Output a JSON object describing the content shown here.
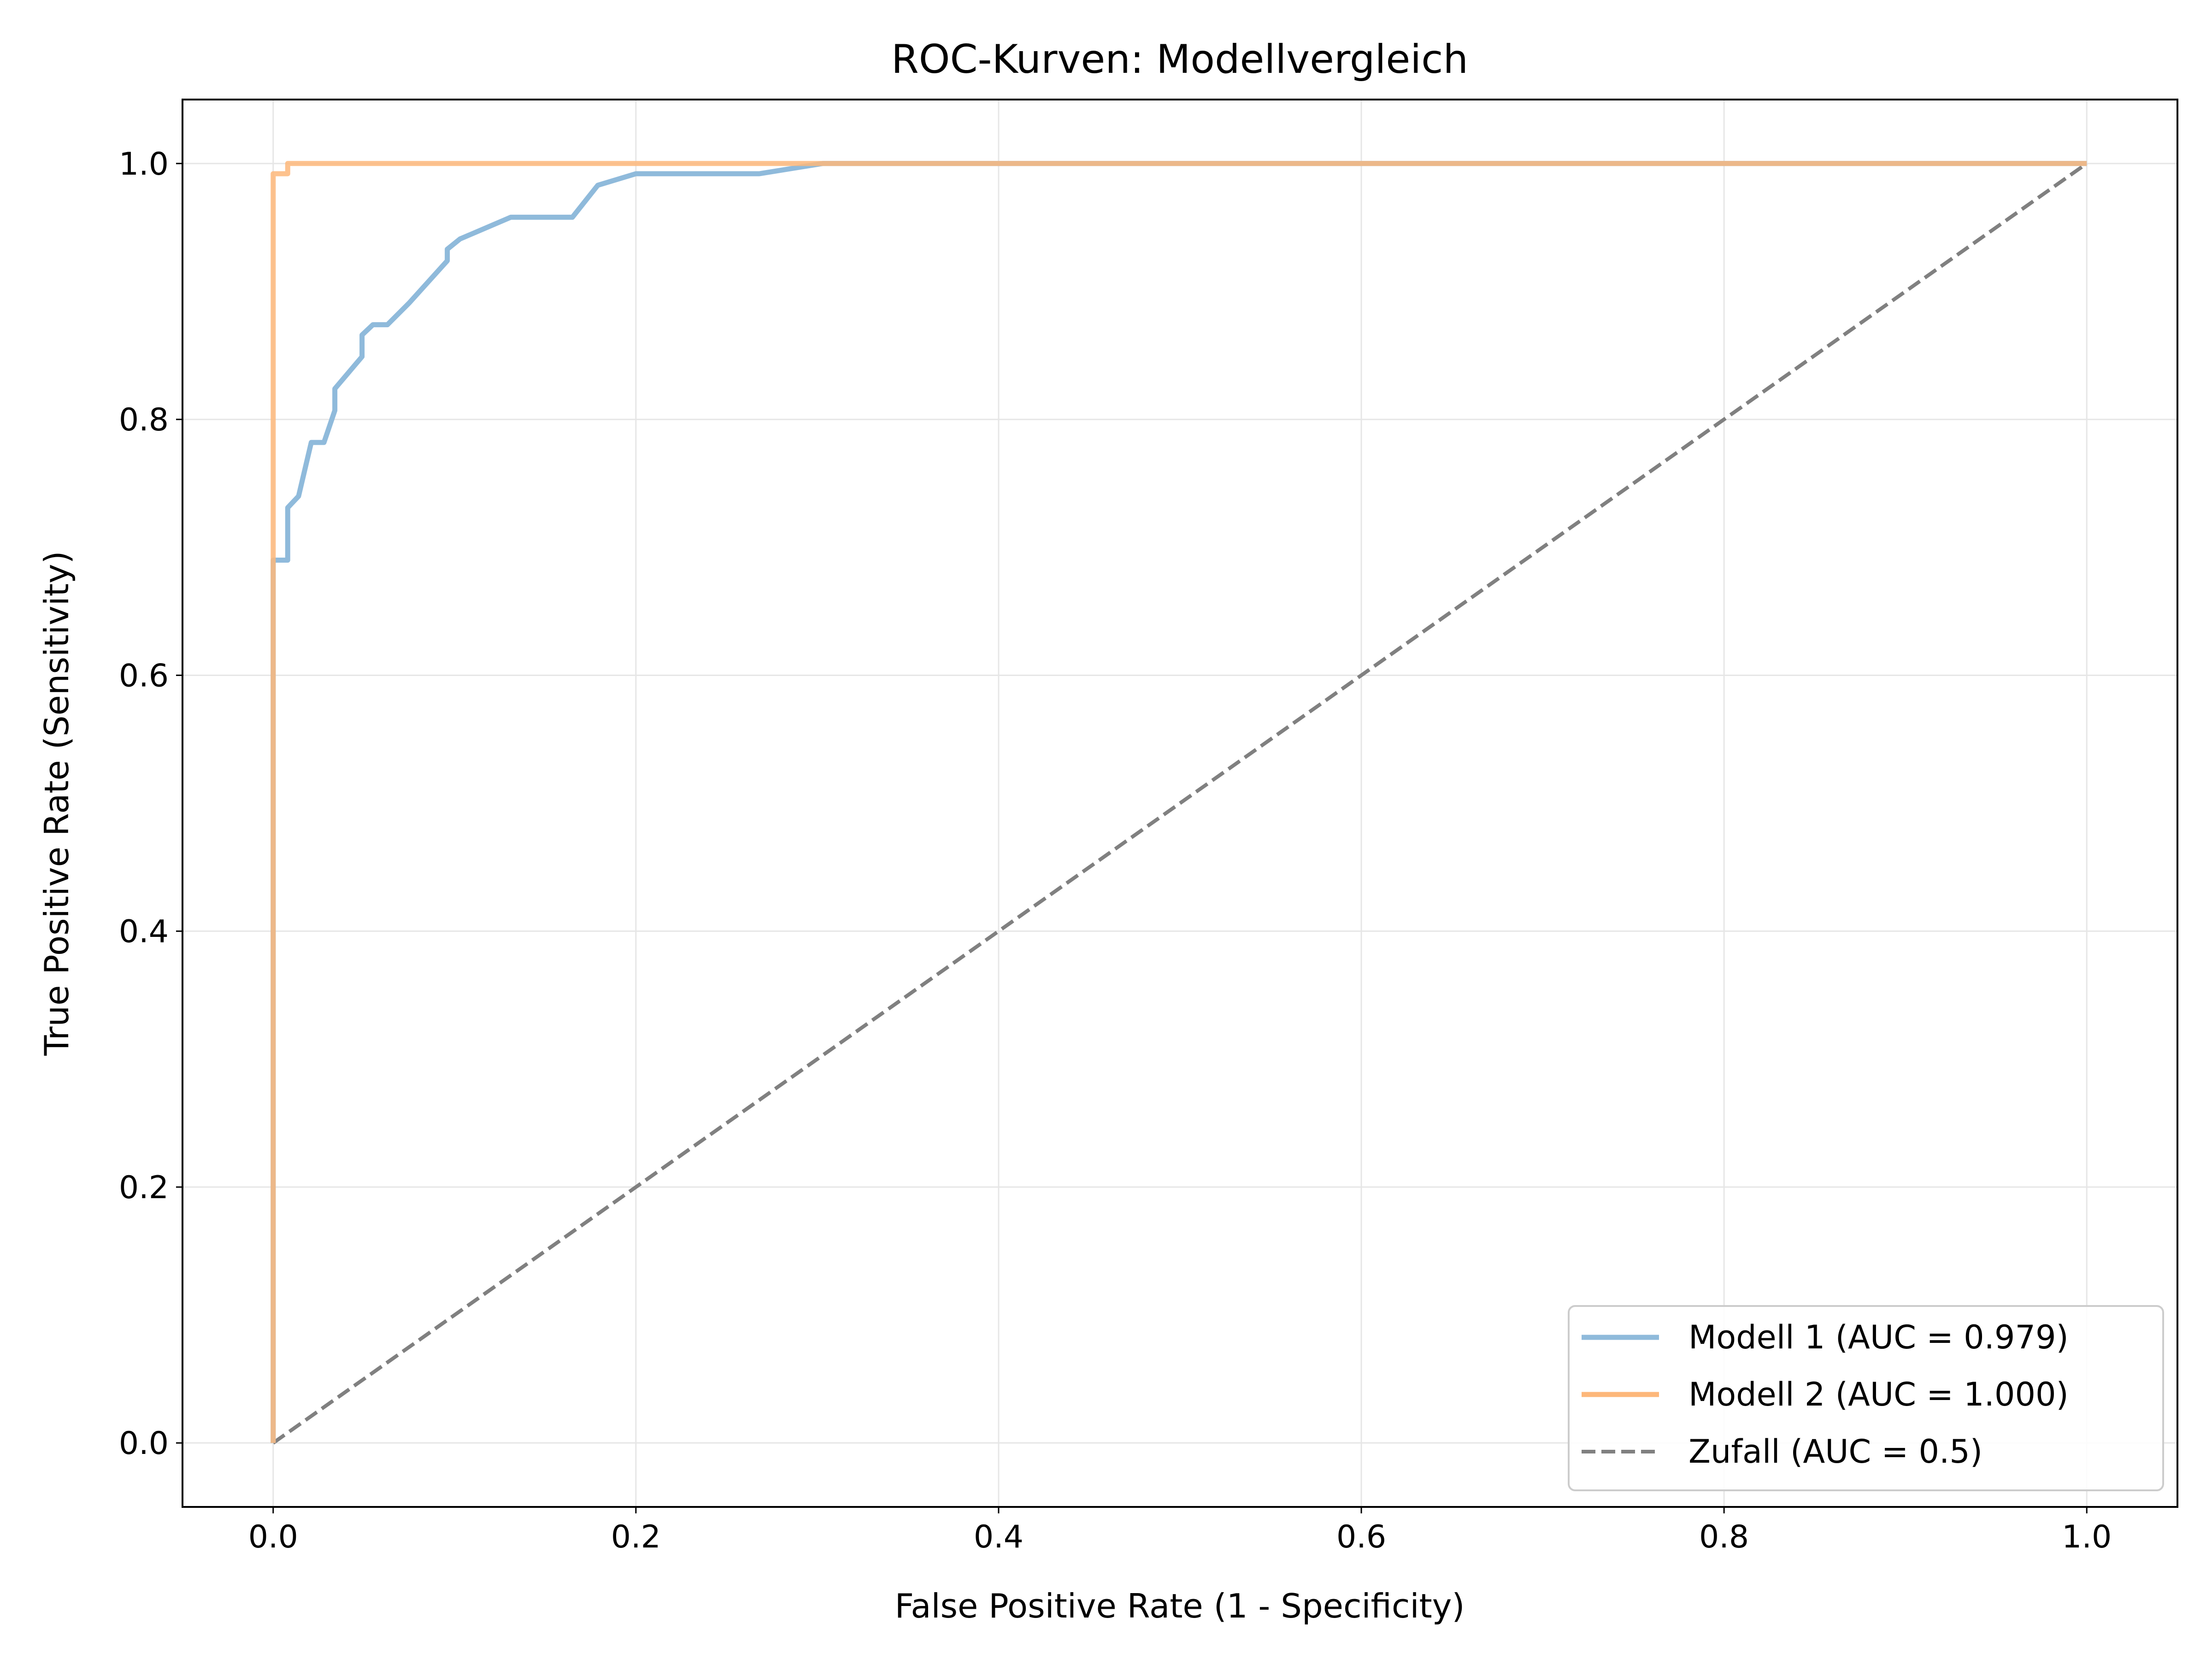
{
  "chart_data": {
    "type": "line",
    "title": "ROC-Kurven: Modellvergleich",
    "xlabel": "False Positive Rate (1 - Specificity)",
    "ylabel": "True Positive Rate (Sensitivity)",
    "xlim": [
      -0.05,
      1.05
    ],
    "ylim": [
      -0.05,
      1.05
    ],
    "xticks": [
      0.0,
      0.2,
      0.4,
      0.6,
      0.8,
      1.0
    ],
    "yticks": [
      0.0,
      0.2,
      0.4,
      0.6,
      0.8,
      1.0
    ],
    "tick_labels_x": [
      "0.0",
      "0.2",
      "0.4",
      "0.6",
      "0.8",
      "1.0"
    ],
    "tick_labels_y": [
      "0.0",
      "0.2",
      "0.4",
      "0.6",
      "0.8",
      "1.0"
    ],
    "grid": true,
    "legend_position": "lower-right",
    "series": [
      {
        "name": "Modell 1 (AUC = 0.979)",
        "color": "#8fbadb",
        "style": "solid",
        "x": [
          0,
          0,
          0.008,
          0.008,
          0.014,
          0.021,
          0.028,
          0.034,
          0.034,
          0.049,
          0.049,
          0.055,
          0.063,
          0.075,
          0.096,
          0.096,
          0.103,
          0.131,
          0.165,
          0.179,
          0.2,
          0.268,
          0.303,
          0.6,
          1.0
        ],
        "y": [
          0,
          0.69,
          0.69,
          0.731,
          0.74,
          0.782,
          0.782,
          0.807,
          0.824,
          0.849,
          0.866,
          0.874,
          0.874,
          0.891,
          0.924,
          0.933,
          0.941,
          0.958,
          0.958,
          0.983,
          0.992,
          0.992,
          1.0,
          1.0,
          1.0
        ]
      },
      {
        "name": "Modell 2 (AUC = 1.000)",
        "color": "#fdb77a",
        "style": "solid",
        "x": [
          0,
          0,
          0.008,
          0.008,
          0.3,
          1.0
        ],
        "y": [
          0,
          0.992,
          0.992,
          1.0,
          1.0,
          1.0
        ]
      },
      {
        "name": "Zufall (AUC = 0.5)",
        "color": "#808080",
        "style": "dashed",
        "x": [
          0,
          1
        ],
        "y": [
          0,
          1
        ]
      }
    ]
  }
}
